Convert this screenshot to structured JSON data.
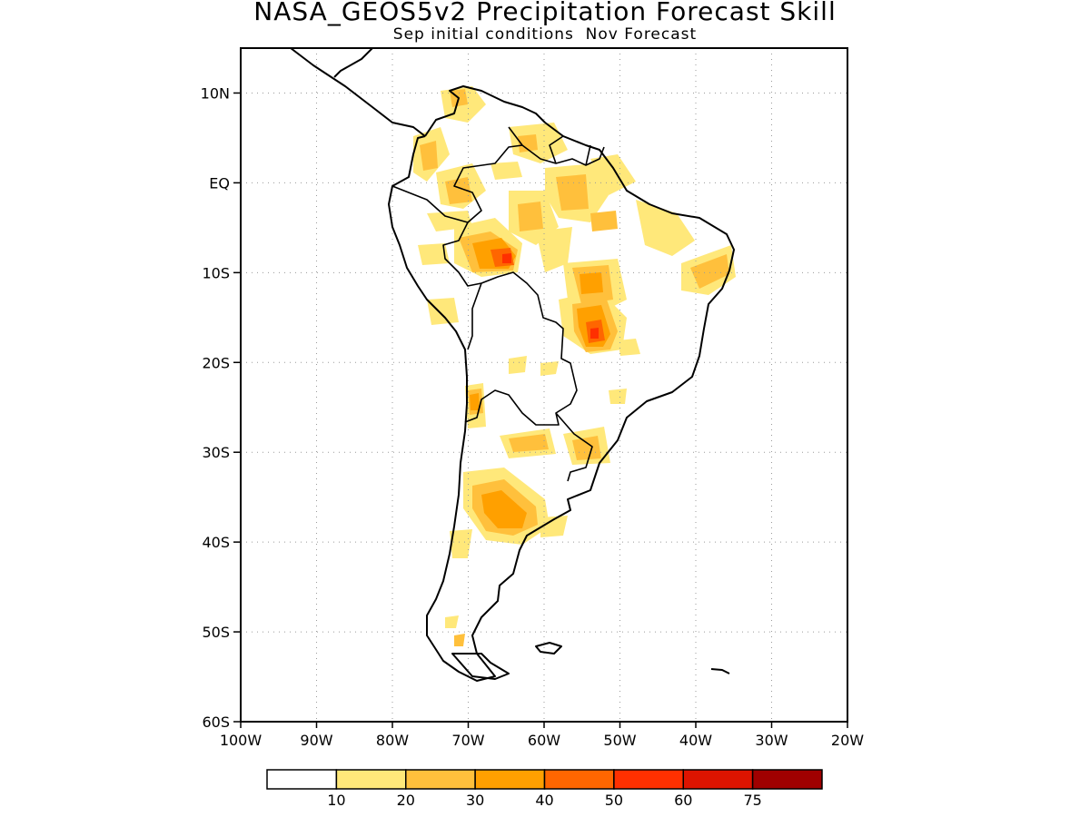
{
  "title": "NASA_GEOS5v2 Precipitation Forecast Skill",
  "subtitle": "Sep initial conditions  Nov Forecast",
  "map": {
    "region": "South America",
    "lon_range": [
      -100,
      -20
    ],
    "lat_range": [
      -60,
      15
    ],
    "lat_ticks": [
      "10N",
      "EQ",
      "10S",
      "20S",
      "30S",
      "40S",
      "50S",
      "60S"
    ],
    "lon_ticks": [
      "100W",
      "90W",
      "80W",
      "70W",
      "60W",
      "50W",
      "40W",
      "30W",
      "20W"
    ],
    "grid": "dotted"
  },
  "colorbar": {
    "colors": [
      "#ffffff",
      "#ffe87a",
      "#ffc03c",
      "#ffa000",
      "#ff6600",
      "#ff3000",
      "#dd1400",
      "#a00000"
    ],
    "labels": [
      "10",
      "20",
      "30",
      "40",
      "50",
      "60",
      "75"
    ]
  }
}
